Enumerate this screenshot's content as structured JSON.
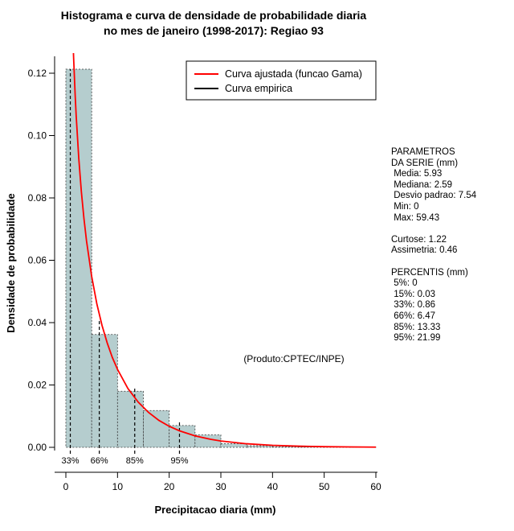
{
  "title": {
    "line1": "Histograma e curva de densidade de probabilidade diaria",
    "line2": "no mes de janeiro (1998-2017): Regiao 93"
  },
  "chart_data": {
    "type": "bar",
    "subtype": "histogram-with-density-curve",
    "xlabel": "Precipitacao diaria (mm)",
    "ylabel": "Densidade de probabilidade",
    "xlim": [
      0,
      60
    ],
    "ylim": [
      0,
      0.12
    ],
    "x_ticks": [
      0,
      10,
      20,
      30,
      40,
      50,
      60
    ],
    "y_ticks": [
      "0.00",
      "0.02",
      "0.04",
      "0.06",
      "0.08",
      "0.10",
      "0.12"
    ],
    "bin_width": 5,
    "bins_start": 0,
    "bar_densities": [
      0.1213,
      0.0362,
      0.018,
      0.0118,
      0.007,
      0.004,
      0.0012,
      0.0005,
      0.0002,
      0.0001,
      0.0001,
      5e-05
    ],
    "bar_color": "#b5cdce",
    "bar_border_color": "#3a3a3a",
    "curve_color": "#ff0000",
    "empirical_color": "#000000",
    "gamma_curve": {
      "x": [
        0.4,
        0.5,
        0.7,
        1.0,
        1.2,
        1.5,
        1.8,
        2.0,
        2.5,
        3,
        3.5,
        4,
        5,
        6,
        7,
        8,
        9,
        10,
        12,
        14,
        16,
        18,
        20,
        22,
        25,
        28,
        30,
        35,
        40,
        45,
        50,
        55,
        60
      ],
      "y": [
        0.235,
        0.2111,
        0.1818,
        0.1537,
        0.1404,
        0.125,
        0.113,
        0.1063,
        0.0927,
        0.082,
        0.0734,
        0.0662,
        0.0548,
        0.046,
        0.0391,
        0.0335,
        0.0288,
        0.025,
        0.0189,
        0.0145,
        0.0112,
        0.00866,
        0.00675,
        0.00529,
        0.00368,
        0.00258,
        0.00204,
        0.00114,
        0.00064,
        0.00037,
        0.00021,
        0.00012,
        7e-05
      ]
    },
    "percentile_lines": [
      {
        "label": "33%",
        "x": 0.86,
        "top": 0.1213
      },
      {
        "label": "66%",
        "x": 6.47,
        "top": 0.0405
      },
      {
        "label": "85%",
        "x": 13.33,
        "top": 0.019
      },
      {
        "label": "95%",
        "x": 21.99,
        "top": 0.008
      }
    ],
    "legend": {
      "position": "top-right",
      "items": [
        {
          "label": "Curva ajustada (funcao Gama)",
          "color": "#ff0000"
        },
        {
          "label": "Curva empirica",
          "color": "#000000"
        }
      ]
    },
    "annotation": "(Produto:CPTEC/INPE)"
  },
  "stats_panel": {
    "lines": [
      "PARAMETROS",
      "DA SERIE (mm)",
      " Media: 5.93",
      " Mediana: 2.59",
      " Desvio padrao: 7.54",
      " Min: 0",
      " Max: 59.43",
      "",
      "Curtose: 1.22",
      "Assimetria: 0.46",
      "",
      "PERCENTIS (mm)",
      " 5%: 0",
      " 15%: 0.03",
      " 33%: 0.86",
      " 66%: 6.47",
      " 85%: 13.33",
      " 95%: 21.99"
    ]
  }
}
